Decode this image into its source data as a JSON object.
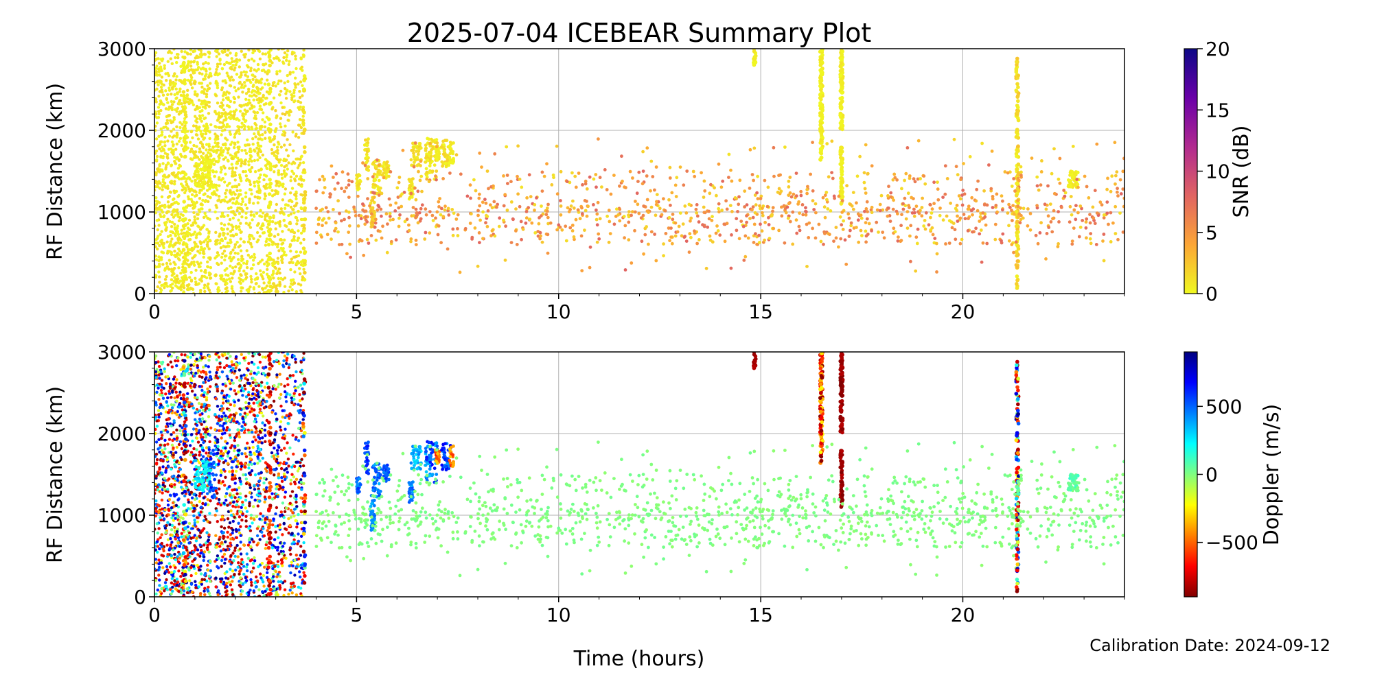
{
  "chart_data": {
    "type": "scatter",
    "title": "2025-07-04 ICEBEAR Summary Plot",
    "xlabel": "Time (hours)",
    "footer": "Calibration Date: 2024-09-12",
    "xlim": [
      0,
      24
    ],
    "x_ticks": [
      0,
      5,
      10,
      15,
      20
    ],
    "grid": true,
    "panels": [
      {
        "ylabel": "RF Distance (km)",
        "ylim": [
          0,
          3000
        ],
        "y_ticks": [
          0,
          1000,
          2000,
          3000
        ],
        "color_variable": "snr",
        "colorbar": {
          "label": "SNR (dB)",
          "range": [
            0,
            20
          ],
          "ticks": [
            0,
            5,
            10,
            15,
            20
          ],
          "colormap": "plasma_r",
          "colors": [
            "#f0f921",
            "#fca636",
            "#e16462",
            "#b12a90",
            "#6a00a8",
            "#0d0887"
          ]
        }
      },
      {
        "ylabel": "RF Distance (km)",
        "ylim": [
          0,
          3000
        ],
        "y_ticks": [
          0,
          1000,
          2000,
          3000
        ],
        "color_variable": "doppler",
        "colorbar": {
          "label": "Doppler (m/s)",
          "range": [
            -900,
            900
          ],
          "ticks": [
            -500,
            0,
            500
          ],
          "tick_labels": [
            "−500",
            "0",
            "500"
          ],
          "colormap": "jet_r",
          "colors": [
            "#800000",
            "#ff0000",
            "#ff8000",
            "#ffff00",
            "#80ff80",
            "#00ffff",
            "#0080ff",
            "#0000ff",
            "#000080"
          ]
        }
      }
    ],
    "clusters": [
      {
        "type": "band",
        "x": [
          0.0,
          1.4
        ],
        "y": [
          0,
          3000
        ],
        "n": 1100,
        "snr": [
          0,
          1.5
        ],
        "doppler": "mixed"
      },
      {
        "type": "band",
        "x": [
          1.5,
          2.8
        ],
        "y": [
          0,
          3000
        ],
        "n": 900,
        "snr": [
          0,
          1.5
        ],
        "doppler": "mixed"
      },
      {
        "type": "band",
        "x": [
          2.9,
          3.7
        ],
        "y": [
          0,
          3000
        ],
        "n": 420,
        "snr": [
          0,
          2
        ],
        "doppler": "mixed"
      },
      {
        "type": "line",
        "x": 0.75,
        "y": [
          0,
          3000
        ],
        "n": 60,
        "snr": [
          0,
          1
        ],
        "doppler": "mixed"
      },
      {
        "type": "line",
        "x": 2.85,
        "y": [
          0,
          3000
        ],
        "n": 60,
        "snr": [
          0,
          1
        ],
        "doppler": [
          -900,
          -500
        ]
      },
      {
        "type": "line",
        "x": 3.7,
        "y": [
          100,
          3000
        ],
        "n": 40,
        "snr": [
          0,
          2
        ],
        "doppler": "mixed"
      },
      {
        "type": "blob",
        "x": [
          1.0,
          1.4
        ],
        "y": [
          1300,
          1700
        ],
        "n": 60,
        "snr": [
          0,
          1
        ],
        "doppler": [
          150,
          350
        ]
      },
      {
        "type": "blob",
        "x": [
          1.35,
          1.5
        ],
        "y": [
          1200,
          1800
        ],
        "n": 30,
        "snr": [
          0,
          1
        ],
        "doppler": [
          450,
          700
        ]
      },
      {
        "type": "blob",
        "x": [
          5.0,
          5.1
        ],
        "y": [
          1250,
          1500
        ],
        "n": 25,
        "snr": [
          0,
          2
        ],
        "doppler": [
          400,
          600
        ]
      },
      {
        "type": "blob",
        "x": [
          5.2,
          5.3
        ],
        "y": [
          1500,
          1900
        ],
        "n": 25,
        "snr": [
          0,
          2
        ],
        "doppler": [
          500,
          700
        ]
      },
      {
        "type": "blob",
        "x": [
          5.35,
          5.45
        ],
        "y": [
          800,
          1250
        ],
        "n": 40,
        "snr": [
          1,
          3
        ],
        "doppler": [
          350,
          550
        ]
      },
      {
        "type": "blob",
        "x": [
          5.4,
          5.6
        ],
        "y": [
          1200,
          1650
        ],
        "n": 45,
        "snr": [
          0,
          2
        ],
        "doppler": [
          350,
          600
        ]
      },
      {
        "type": "blob",
        "x": [
          5.65,
          5.8
        ],
        "y": [
          1400,
          1650
        ],
        "n": 30,
        "snr": [
          0,
          2
        ],
        "doppler": [
          400,
          600
        ]
      },
      {
        "type": "blob",
        "x": [
          6.3,
          6.4
        ],
        "y": [
          1150,
          1450
        ],
        "n": 25,
        "snr": [
          0,
          2
        ],
        "doppler": [
          350,
          550
        ]
      },
      {
        "type": "blob",
        "x": [
          6.35,
          6.6
        ],
        "y": [
          1550,
          1850
        ],
        "n": 40,
        "snr": [
          0,
          2
        ],
        "doppler": [
          250,
          450
        ]
      },
      {
        "type": "blob",
        "x": [
          6.7,
          7.0
        ],
        "y": [
          1400,
          1900
        ],
        "n": 60,
        "snr": [
          0,
          2
        ],
        "doppler": [
          300,
          700
        ]
      },
      {
        "type": "blob",
        "x": [
          6.95,
          7.05
        ],
        "y": [
          1600,
          1800
        ],
        "n": 20,
        "snr": [
          0,
          1
        ],
        "doppler": [
          -700,
          -300
        ]
      },
      {
        "type": "blob",
        "x": [
          7.1,
          7.35
        ],
        "y": [
          1550,
          1900
        ],
        "n": 40,
        "snr": [
          0,
          2
        ],
        "doppler": [
          400,
          700
        ]
      },
      {
        "type": "blob",
        "x": [
          7.3,
          7.4
        ],
        "y": [
          1600,
          1850
        ],
        "n": 20,
        "snr": [
          0,
          1
        ],
        "doppler": [
          -600,
          -300
        ]
      },
      {
        "type": "line",
        "x": 14.85,
        "y": [
          2800,
          3000
        ],
        "n": 18,
        "snr": [
          0,
          1
        ],
        "doppler": [
          -900,
          -800
        ]
      },
      {
        "type": "line",
        "x": 16.5,
        "y": [
          1600,
          3000
        ],
        "n": 110,
        "snr": [
          0,
          1
        ],
        "doppler": [
          -900,
          -200
        ]
      },
      {
        "type": "line",
        "x": 17.0,
        "y": [
          2000,
          3000
        ],
        "n": 90,
        "snr": [
          0,
          1
        ],
        "doppler": [
          -900,
          -800
        ]
      },
      {
        "type": "line",
        "x": 17.0,
        "y": [
          1100,
          1800
        ],
        "n": 50,
        "snr": [
          0,
          1
        ],
        "doppler": [
          -900,
          -800
        ]
      },
      {
        "type": "line",
        "x": 21.35,
        "y": [
          50,
          2900
        ],
        "n": 130,
        "snr": [
          0,
          3
        ],
        "doppler": "mixed"
      },
      {
        "type": "blob",
        "x": [
          22.6,
          22.9
        ],
        "y": [
          1300,
          1500
        ],
        "n": 50,
        "snr": [
          0,
          1
        ],
        "doppler": [
          0,
          150
        ]
      },
      {
        "type": "scatter",
        "x": [
          4.0,
          24.0
        ],
        "y": [
          250,
          1900
        ],
        "n": 1250,
        "snr": [
          1,
          8
        ],
        "doppler": [
          -30,
          30
        ]
      }
    ]
  }
}
